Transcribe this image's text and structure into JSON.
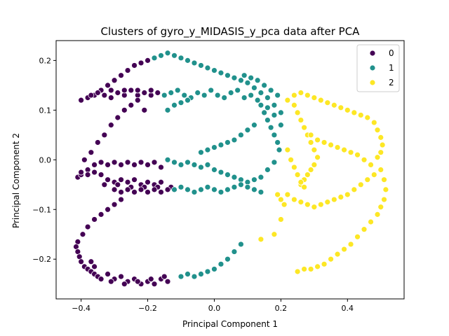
{
  "chart_data": {
    "type": "scatter",
    "title": "Clusters of gyro_y_MIDASIS_y_pca data after PCA",
    "xlabel": "Principal Component 1",
    "ylabel": "Principal Component 2",
    "xlim": [
      -0.475,
      0.57
    ],
    "ylim": [
      -0.28,
      0.24
    ],
    "xticks": [
      -0.4,
      -0.2,
      0.0,
      0.2,
      0.4
    ],
    "xtick_labels": [
      "−0.4",
      "−0.2",
      "0.0",
      "0.2",
      "0.4"
    ],
    "yticks": [
      -0.2,
      -0.1,
      0.0,
      0.1,
      0.2
    ],
    "ytick_labels": [
      "−0.2",
      "−0.1",
      "0.0",
      "0.1",
      "0.2"
    ],
    "legend_position": "top-right",
    "grid": false,
    "series": [
      {
        "name": "0",
        "color": "#440154",
        "points": [
          [
            -0.4,
            0.12
          ],
          [
            -0.38,
            0.125
          ],
          [
            -0.36,
            0.13
          ],
          [
            -0.34,
            0.14
          ],
          [
            -0.32,
            0.15
          ],
          [
            -0.3,
            0.16
          ],
          [
            -0.28,
            0.17
          ],
          [
            -0.26,
            0.18
          ],
          [
            -0.24,
            0.19
          ],
          [
            -0.22,
            0.195
          ],
          [
            -0.2,
            0.2
          ],
          [
            -0.37,
            0.13
          ],
          [
            -0.35,
            0.135
          ],
          [
            -0.33,
            0.13
          ],
          [
            -0.31,
            0.14
          ],
          [
            -0.29,
            0.135
          ],
          [
            -0.27,
            0.13
          ],
          [
            -0.25,
            0.14
          ],
          [
            -0.23,
            0.13
          ],
          [
            -0.21,
            0.135
          ],
          [
            -0.19,
            0.13
          ],
          [
            -0.17,
            0.135
          ],
          [
            -0.31,
            0.125
          ],
          [
            -0.27,
            0.14
          ],
          [
            -0.23,
            0.14
          ],
          [
            -0.19,
            0.14
          ],
          [
            -0.39,
            0.0
          ],
          [
            -0.37,
            0.015
          ],
          [
            -0.35,
            0.035
          ],
          [
            -0.33,
            0.05
          ],
          [
            -0.31,
            0.07
          ],
          [
            -0.29,
            0.085
          ],
          [
            -0.27,
            0.1
          ],
          [
            -0.25,
            0.11
          ],
          [
            -0.23,
            0.12
          ],
          [
            -0.21,
            0.1
          ],
          [
            -0.41,
            -0.035
          ],
          [
            -0.4,
            -0.03
          ],
          [
            -0.38,
            -0.02
          ],
          [
            -0.36,
            -0.01
          ],
          [
            -0.34,
            -0.005
          ],
          [
            -0.32,
            -0.01
          ],
          [
            -0.3,
            -0.005
          ],
          [
            -0.28,
            -0.01
          ],
          [
            -0.26,
            -0.005
          ],
          [
            -0.24,
            -0.01
          ],
          [
            -0.22,
            -0.005
          ],
          [
            -0.2,
            -0.01
          ],
          [
            -0.18,
            -0.005
          ],
          [
            -0.16,
            -0.015
          ],
          [
            -0.4,
            -0.025
          ],
          [
            -0.38,
            -0.03
          ],
          [
            -0.36,
            -0.025
          ],
          [
            -0.34,
            -0.03
          ],
          [
            -0.32,
            -0.04
          ],
          [
            -0.3,
            -0.045
          ],
          [
            -0.28,
            -0.04
          ],
          [
            -0.26,
            -0.045
          ],
          [
            -0.24,
            -0.04
          ],
          [
            -0.22,
            -0.05
          ],
          [
            -0.2,
            -0.045
          ],
          [
            -0.18,
            -0.05
          ],
          [
            -0.16,
            -0.045
          ],
          [
            -0.33,
            -0.05
          ],
          [
            -0.29,
            -0.05
          ],
          [
            -0.25,
            -0.055
          ],
          [
            -0.21,
            -0.055
          ],
          [
            -0.17,
            -0.055
          ],
          [
            -0.13,
            -0.055
          ],
          [
            -0.3,
            -0.06
          ],
          [
            -0.28,
            -0.065
          ],
          [
            -0.26,
            -0.06
          ],
          [
            -0.24,
            -0.065
          ],
          [
            -0.22,
            -0.06
          ],
          [
            -0.2,
            -0.065
          ],
          [
            -0.18,
            -0.06
          ],
          [
            -0.16,
            -0.065
          ],
          [
            -0.14,
            -0.06
          ],
          [
            -0.28,
            -0.08
          ],
          [
            -0.3,
            -0.09
          ],
          [
            -0.32,
            -0.1
          ],
          [
            -0.34,
            -0.11
          ],
          [
            -0.36,
            -0.12
          ],
          [
            -0.38,
            -0.135
          ],
          [
            -0.395,
            -0.15
          ],
          [
            -0.41,
            -0.165
          ],
          [
            -0.415,
            -0.175
          ],
          [
            -0.41,
            -0.185
          ],
          [
            -0.405,
            -0.195
          ],
          [
            -0.4,
            -0.205
          ],
          [
            -0.39,
            -0.215
          ],
          [
            -0.38,
            -0.22
          ],
          [
            -0.37,
            -0.225
          ],
          [
            -0.36,
            -0.23
          ],
          [
            -0.35,
            -0.235
          ],
          [
            -0.34,
            -0.24
          ],
          [
            -0.32,
            -0.23
          ],
          [
            -0.3,
            -0.24
          ],
          [
            -0.28,
            -0.235
          ],
          [
            -0.26,
            -0.245
          ],
          [
            -0.24,
            -0.24
          ],
          [
            -0.22,
            -0.25
          ],
          [
            -0.2,
            -0.245
          ],
          [
            -0.18,
            -0.25
          ],
          [
            -0.16,
            -0.24
          ],
          [
            -0.14,
            -0.245
          ],
          [
            -0.31,
            -0.245
          ],
          [
            -0.27,
            -0.25
          ],
          [
            -0.23,
            -0.245
          ],
          [
            -0.19,
            -0.24
          ],
          [
            -0.15,
            -0.235
          ],
          [
            -0.37,
            -0.205
          ],
          [
            -0.36,
            -0.215
          ]
        ]
      },
      {
        "name": "1",
        "color": "#21918c",
        "points": [
          [
            -0.18,
            0.205
          ],
          [
            -0.16,
            0.21
          ],
          [
            -0.14,
            0.215
          ],
          [
            -0.12,
            0.21
          ],
          [
            -0.1,
            0.205
          ],
          [
            -0.08,
            0.2
          ],
          [
            -0.06,
            0.195
          ],
          [
            -0.04,
            0.19
          ],
          [
            -0.02,
            0.185
          ],
          [
            0.0,
            0.18
          ],
          [
            0.02,
            0.175
          ],
          [
            0.04,
            0.17
          ],
          [
            0.06,
            0.165
          ],
          [
            0.08,
            0.16
          ],
          [
            0.1,
            0.155
          ],
          [
            0.12,
            0.145
          ],
          [
            0.14,
            0.135
          ],
          [
            0.16,
            0.125
          ],
          [
            0.18,
            0.11
          ],
          [
            0.2,
            0.095
          ],
          [
            -0.15,
            0.13
          ],
          [
            -0.13,
            0.135
          ],
          [
            -0.11,
            0.14
          ],
          [
            -0.09,
            0.13
          ],
          [
            -0.07,
            0.125
          ],
          [
            -0.05,
            0.135
          ],
          [
            -0.03,
            0.13
          ],
          [
            -0.01,
            0.14
          ],
          [
            0.01,
            0.13
          ],
          [
            0.03,
            0.125
          ],
          [
            0.05,
            0.135
          ],
          [
            0.07,
            0.14
          ],
          [
            0.09,
            0.125
          ],
          [
            0.11,
            0.13
          ],
          [
            0.13,
            0.12
          ],
          [
            -0.14,
            0.1
          ],
          [
            -0.12,
            0.11
          ],
          [
            -0.1,
            0.115
          ],
          [
            -0.08,
            0.12
          ],
          [
            0.14,
            0.11
          ],
          [
            0.15,
            0.095
          ],
          [
            0.16,
            0.08
          ],
          [
            0.17,
            0.065
          ],
          [
            0.18,
            0.05
          ],
          [
            0.19,
            0.035
          ],
          [
            0.195,
            0.02
          ],
          [
            0.06,
            0.04
          ],
          [
            0.04,
            0.035
          ],
          [
            0.02,
            0.03
          ],
          [
            0.0,
            0.025
          ],
          [
            -0.02,
            0.02
          ],
          [
            -0.04,
            0.015
          ],
          [
            0.08,
            0.05
          ],
          [
            0.1,
            0.06
          ],
          [
            0.12,
            0.07
          ],
          [
            -0.14,
            0.0
          ],
          [
            -0.12,
            -0.005
          ],
          [
            -0.1,
            -0.01
          ],
          [
            -0.08,
            -0.005
          ],
          [
            -0.06,
            -0.01
          ],
          [
            -0.04,
            -0.015
          ],
          [
            -0.02,
            -0.01
          ],
          [
            0.0,
            -0.02
          ],
          [
            0.02,
            -0.025
          ],
          [
            0.04,
            -0.03
          ],
          [
            0.06,
            -0.035
          ],
          [
            0.08,
            -0.04
          ],
          [
            0.1,
            -0.045
          ],
          [
            0.12,
            -0.04
          ],
          [
            0.14,
            -0.035
          ],
          [
            0.16,
            -0.02
          ],
          [
            0.18,
            -0.005
          ],
          [
            -0.12,
            -0.06
          ],
          [
            -0.1,
            -0.055
          ],
          [
            -0.08,
            -0.06
          ],
          [
            -0.06,
            -0.065
          ],
          [
            -0.04,
            -0.06
          ],
          [
            -0.02,
            -0.055
          ],
          [
            0.0,
            -0.06
          ],
          [
            0.02,
            -0.065
          ],
          [
            0.04,
            -0.06
          ],
          [
            0.06,
            -0.055
          ],
          [
            0.08,
            -0.05
          ],
          [
            0.1,
            -0.055
          ],
          [
            0.12,
            -0.06
          ],
          [
            0.14,
            -0.065
          ],
          [
            0.08,
            -0.17
          ],
          [
            0.06,
            -0.185
          ],
          [
            0.04,
            -0.2
          ],
          [
            0.02,
            -0.21
          ],
          [
            0.0,
            -0.22
          ],
          [
            -0.02,
            -0.225
          ],
          [
            -0.04,
            -0.23
          ],
          [
            -0.06,
            -0.235
          ],
          [
            -0.08,
            -0.23
          ],
          [
            -0.1,
            -0.235
          ],
          [
            0.09,
            0.17
          ],
          [
            0.11,
            0.165
          ],
          [
            0.13,
            0.16
          ],
          [
            0.15,
            0.15
          ],
          [
            0.17,
            0.14
          ],
          [
            0.19,
            0.13
          ],
          [
            0.16,
            0.105
          ],
          [
            0.18,
            0.09
          ],
          [
            0.2,
            0.07
          ]
        ]
      },
      {
        "name": "2",
        "color": "#fde725",
        "points": [
          [
            0.22,
            0.12
          ],
          [
            0.24,
            0.13
          ],
          [
            0.26,
            0.135
          ],
          [
            0.28,
            0.13
          ],
          [
            0.3,
            0.125
          ],
          [
            0.32,
            0.12
          ],
          [
            0.34,
            0.115
          ],
          [
            0.36,
            0.11
          ],
          [
            0.38,
            0.105
          ],
          [
            0.4,
            0.1
          ],
          [
            0.42,
            0.095
          ],
          [
            0.44,
            0.09
          ],
          [
            0.46,
            0.085
          ],
          [
            0.48,
            0.075
          ],
          [
            0.49,
            0.06
          ],
          [
            0.5,
            0.045
          ],
          [
            0.505,
            0.03
          ],
          [
            0.5,
            0.015
          ],
          [
            0.49,
            0.005
          ],
          [
            0.24,
            0.11
          ],
          [
            0.25,
            0.095
          ],
          [
            0.26,
            0.08
          ],
          [
            0.27,
            0.065
          ],
          [
            0.28,
            0.05
          ],
          [
            0.29,
            0.035
          ],
          [
            0.3,
            0.02
          ],
          [
            0.31,
            0.005
          ],
          [
            0.3,
            -0.01
          ],
          [
            0.29,
            -0.02
          ],
          [
            0.28,
            -0.03
          ],
          [
            0.27,
            -0.04
          ],
          [
            0.26,
            -0.05
          ],
          [
            0.22,
            0.02
          ],
          [
            0.23,
            0.0
          ],
          [
            0.24,
            -0.015
          ],
          [
            0.25,
            -0.03
          ],
          [
            0.26,
            -0.045
          ],
          [
            0.27,
            -0.055
          ],
          [
            0.29,
            0.05
          ],
          [
            0.31,
            0.04
          ],
          [
            0.33,
            0.035
          ],
          [
            0.35,
            0.03
          ],
          [
            0.37,
            0.025
          ],
          [
            0.39,
            0.02
          ],
          [
            0.41,
            0.015
          ],
          [
            0.43,
            0.01
          ],
          [
            0.45,
            0.0
          ],
          [
            0.47,
            -0.01
          ],
          [
            0.22,
            -0.07
          ],
          [
            0.24,
            -0.08
          ],
          [
            0.26,
            -0.085
          ],
          [
            0.28,
            -0.09
          ],
          [
            0.3,
            -0.095
          ],
          [
            0.32,
            -0.09
          ],
          [
            0.34,
            -0.085
          ],
          [
            0.36,
            -0.08
          ],
          [
            0.38,
            -0.075
          ],
          [
            0.4,
            -0.07
          ],
          [
            0.42,
            -0.06
          ],
          [
            0.44,
            -0.05
          ],
          [
            0.46,
            -0.04
          ],
          [
            0.48,
            -0.03
          ],
          [
            0.19,
            -0.07
          ],
          [
            0.2,
            -0.08
          ],
          [
            0.21,
            -0.09
          ],
          [
            0.2,
            -0.12
          ],
          [
            0.18,
            -0.15
          ],
          [
            0.14,
            -0.16
          ],
          [
            0.5,
            -0.02
          ],
          [
            0.51,
            -0.04
          ],
          [
            0.515,
            -0.06
          ],
          [
            0.51,
            -0.08
          ],
          [
            0.5,
            -0.095
          ],
          [
            0.49,
            -0.11
          ],
          [
            0.47,
            -0.125
          ],
          [
            0.45,
            -0.14
          ],
          [
            0.43,
            -0.155
          ],
          [
            0.41,
            -0.17
          ],
          [
            0.39,
            -0.18
          ],
          [
            0.37,
            -0.19
          ],
          [
            0.35,
            -0.2
          ],
          [
            0.33,
            -0.21
          ],
          [
            0.31,
            -0.215
          ],
          [
            0.29,
            -0.22
          ],
          [
            0.27,
            -0.22
          ],
          [
            0.25,
            -0.225
          ]
        ]
      }
    ]
  }
}
